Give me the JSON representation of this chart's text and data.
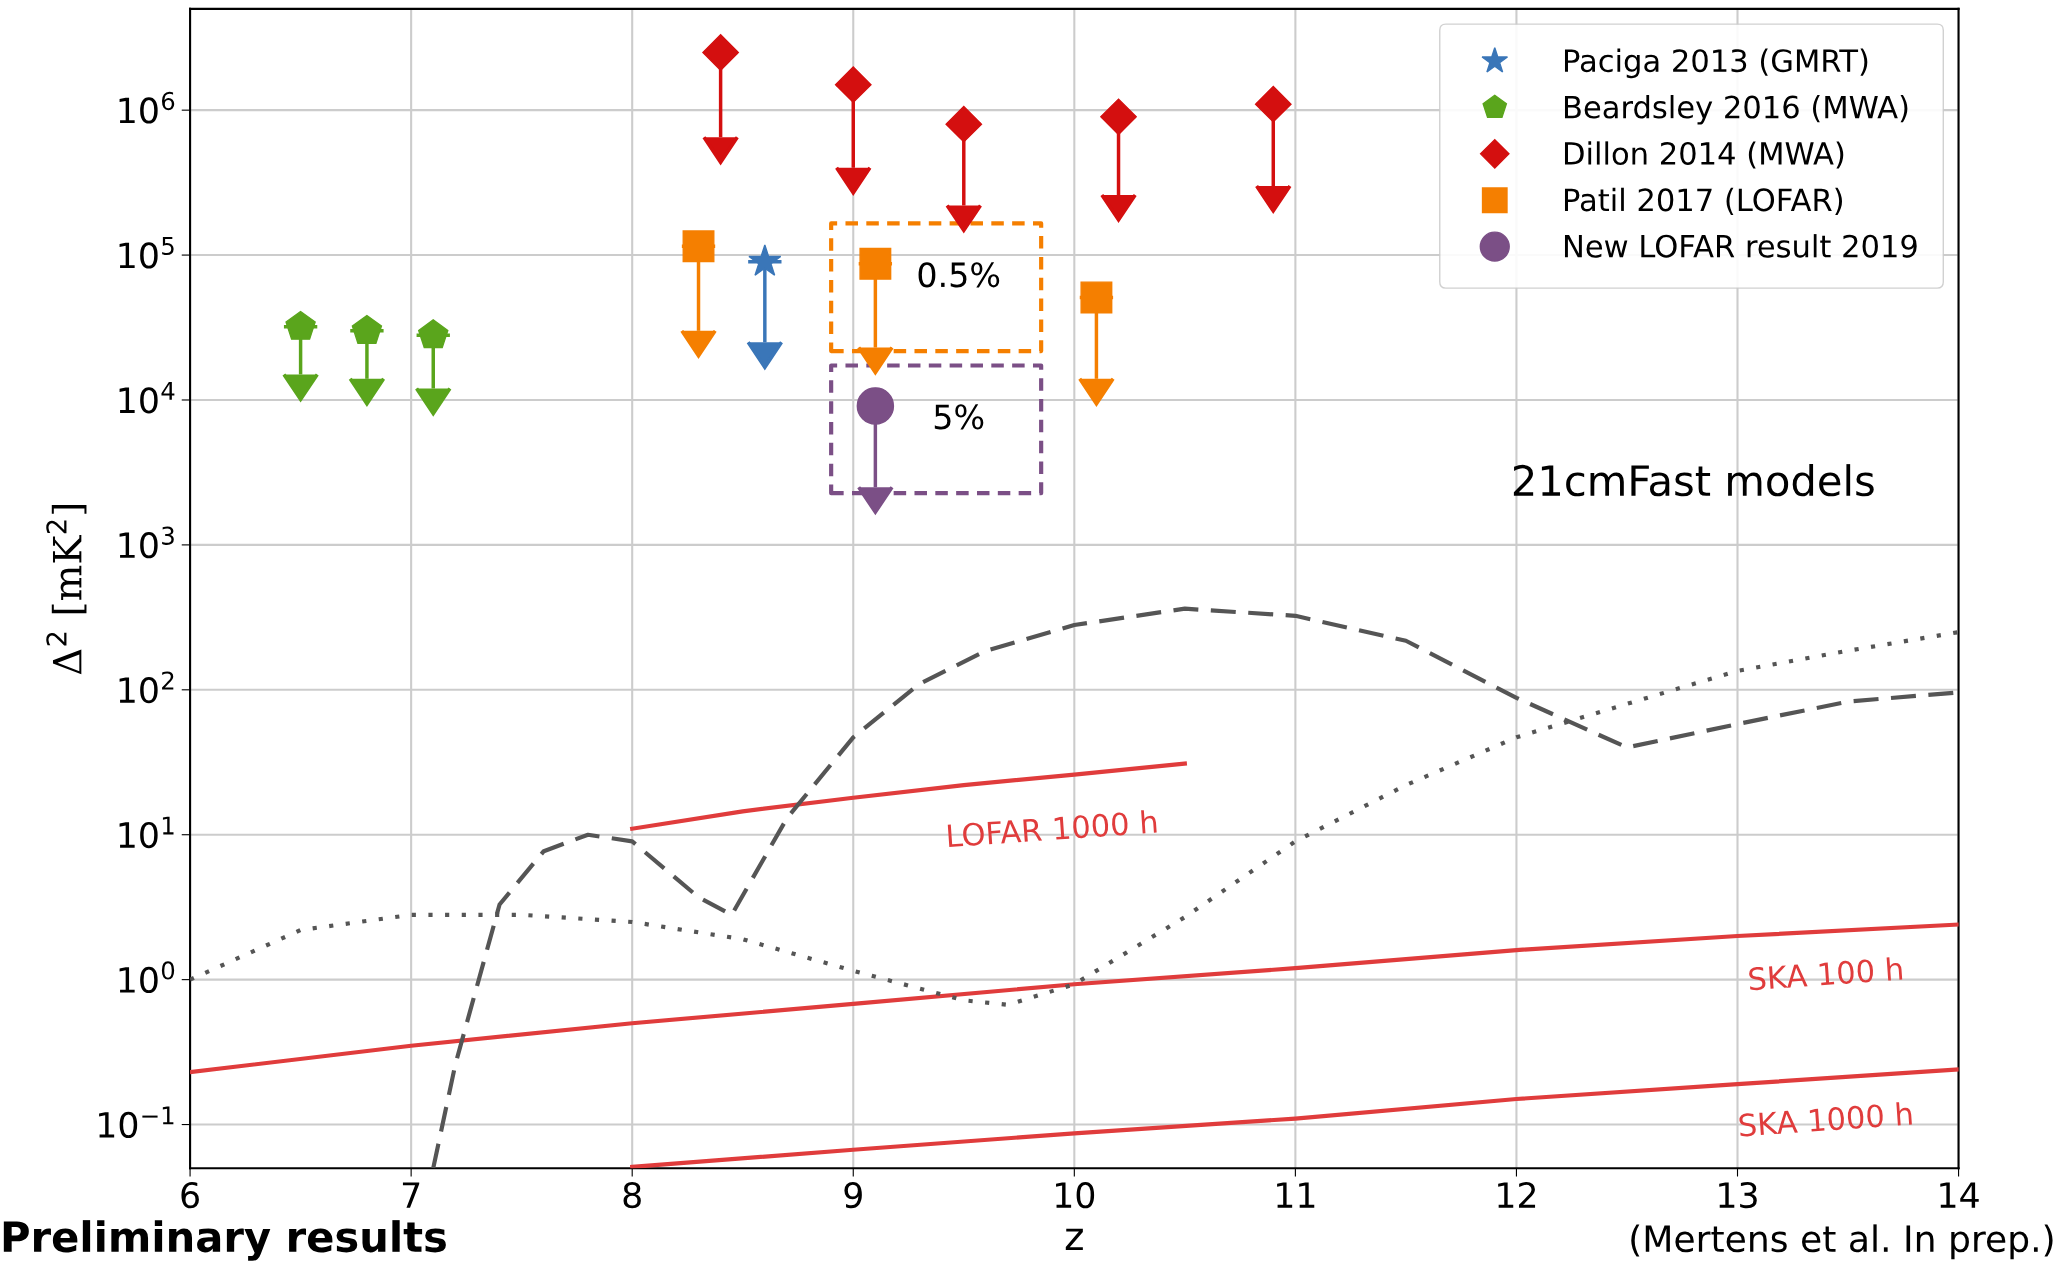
{
  "chart_data": {
    "type": "scatter",
    "xlabel": "z",
    "ylabel": "Δ$^{2}$ [mK$^{2}$]",
    "log": "y",
    "grid": true,
    "legend": "top right",
    "xlim": [
      6,
      14
    ],
    "xticks": [
      6,
      7,
      8,
      9,
      10,
      11,
      12,
      13,
      14
    ],
    "ylim": [
      0.05,
      5000000
    ],
    "yticks": [
      {
        "value": 0.1,
        "label": "10$^{−1}$"
      },
      {
        "value": 1,
        "label": "10$^{0}$"
      },
      {
        "value": 10,
        "label": "10$^{1}$"
      },
      {
        "value": 100,
        "label": "10$^{2}$"
      },
      {
        "value": 1000,
        "label": "10$^{3}$"
      },
      {
        "value": 10000,
        "label": "10$^{4}$"
      },
      {
        "value": 100000,
        "label": "10$^{5}$"
      },
      {
        "value": 1000000,
        "label": "10$^{6}$"
      }
    ],
    "series": [
      {
        "name": "Paciga 2013 (GMRT)",
        "marker": "star",
        "color": "#3a76b8",
        "x": [
          8.6
        ],
        "values": [
          90000
        ],
        "errors": [
          [
            25000,
            90000
          ]
        ]
      },
      {
        "name": "Beardsley 2016 (MWA)",
        "color": "#5aa51c",
        "x": [
          6.5,
          6.8,
          7.1
        ],
        "values": [
          32000,
          30000,
          28000
        ],
        "errors": [
          [
            15000,
            32000
          ],
          [
            14000,
            30000
          ],
          [
            12000,
            28000
          ]
        ]
      },
      {
        "name": "Dillon 2014 (MWA)",
        "marker": "diamond",
        "color": "#d40f0f",
        "x": [
          8.4,
          9.0,
          9.5,
          10.2,
          10.9
        ],
        "values": [
          2500000,
          1500000,
          800000,
          900000,
          1100000
        ],
        "errors": [
          [
            650000,
            2500000
          ],
          [
            400000,
            1500000
          ],
          [
            220000,
            800000
          ],
          [
            260000,
            900000
          ],
          [
            300000,
            1100000
          ]
        ]
      },
      {
        "name": "Patil 2017 (LOFAR)",
        "marker": "square",
        "color": "#f57f00",
        "x": [
          8.3,
          9.1,
          10.1
        ],
        "values": [
          115000,
          87000,
          51000
        ],
        "errors": [
          [
            30000,
            115000
          ],
          [
            23000,
            87000
          ],
          [
            14000,
            51000
          ]
        ]
      },
      {
        "name": "New LOFAR result 2019",
        "marker": "circle",
        "color": "#7b4f86",
        "x": [
          9.1
        ],
        "values": [
          9100
        ],
        "errors": [
          [
            2500,
            9100
          ]
        ]
      },
      {
        "type": "line",
        "color": "#e03c3c",
        "line_style": "solid",
        "x": [
          8,
          8.5,
          9,
          9.5,
          10,
          10.5
        ],
        "values": [
          11,
          14.5,
          18,
          22,
          26,
          31
        ]
      },
      {
        "type": "line",
        "color": "#e03c3c",
        "line_style": "solid",
        "x": [
          6,
          7,
          8,
          9,
          10,
          11,
          12,
          13,
          14
        ],
        "values": [
          0.23,
          0.35,
          0.5,
          0.68,
          0.93,
          1.2,
          1.6,
          2.0,
          2.4
        ]
      },
      {
        "type": "line",
        "color": "#e03c3c",
        "line_style": "solid",
        "x": [
          8,
          9,
          10,
          11,
          12,
          13,
          14
        ],
        "values": [
          0.051,
          0.067,
          0.087,
          0.11,
          0.15,
          0.19,
          0.24
        ]
      },
      {
        "type": "line",
        "color": "#555555",
        "line_style": "dashed",
        "x": [
          7.1,
          7.2,
          7.4,
          7.6,
          7.8,
          8.0,
          8.3,
          8.45,
          8.7,
          9.0,
          9.3,
          9.6,
          10.0,
          10.5,
          11.0,
          11.5,
          12.0,
          12.5,
          13.0,
          13.5,
          14.0
        ],
        "values": [
          0.05,
          0.26,
          3.3,
          7.7,
          10,
          9,
          3.7,
          2.8,
          13,
          47,
          110,
          186,
          280,
          363,
          324,
          218,
          88,
          40,
          58,
          83,
          96
        ]
      },
      {
        "type": "line",
        "color": "#555555",
        "line_style": "dotted",
        "x": [
          6,
          6.5,
          7,
          7.5,
          8,
          8.5,
          9,
          9.5,
          9.7,
          10,
          10.5,
          11,
          11.5,
          12,
          12.5,
          13,
          13.5,
          14
        ],
        "values": [
          1.0,
          2.2,
          2.8,
          2.8,
          2.5,
          1.9,
          1.15,
          0.72,
          0.67,
          0.93,
          2.7,
          9,
          22,
          47,
          80,
          135,
          186,
          250
        ]
      }
    ],
    "annotations": [
      "LOFAR 1000 h",
      "SKA 100 h",
      "SKA 1000 h",
      "21cmFast models",
      {
        "text": "0.5%",
        "x": 9.1,
        "y": 87000
      },
      {
        "text": "5%",
        "x": 9.1,
        "y": 9100
      },
      "Preliminary results",
      "(Mertens et al. In prep.)"
    ]
  }
}
